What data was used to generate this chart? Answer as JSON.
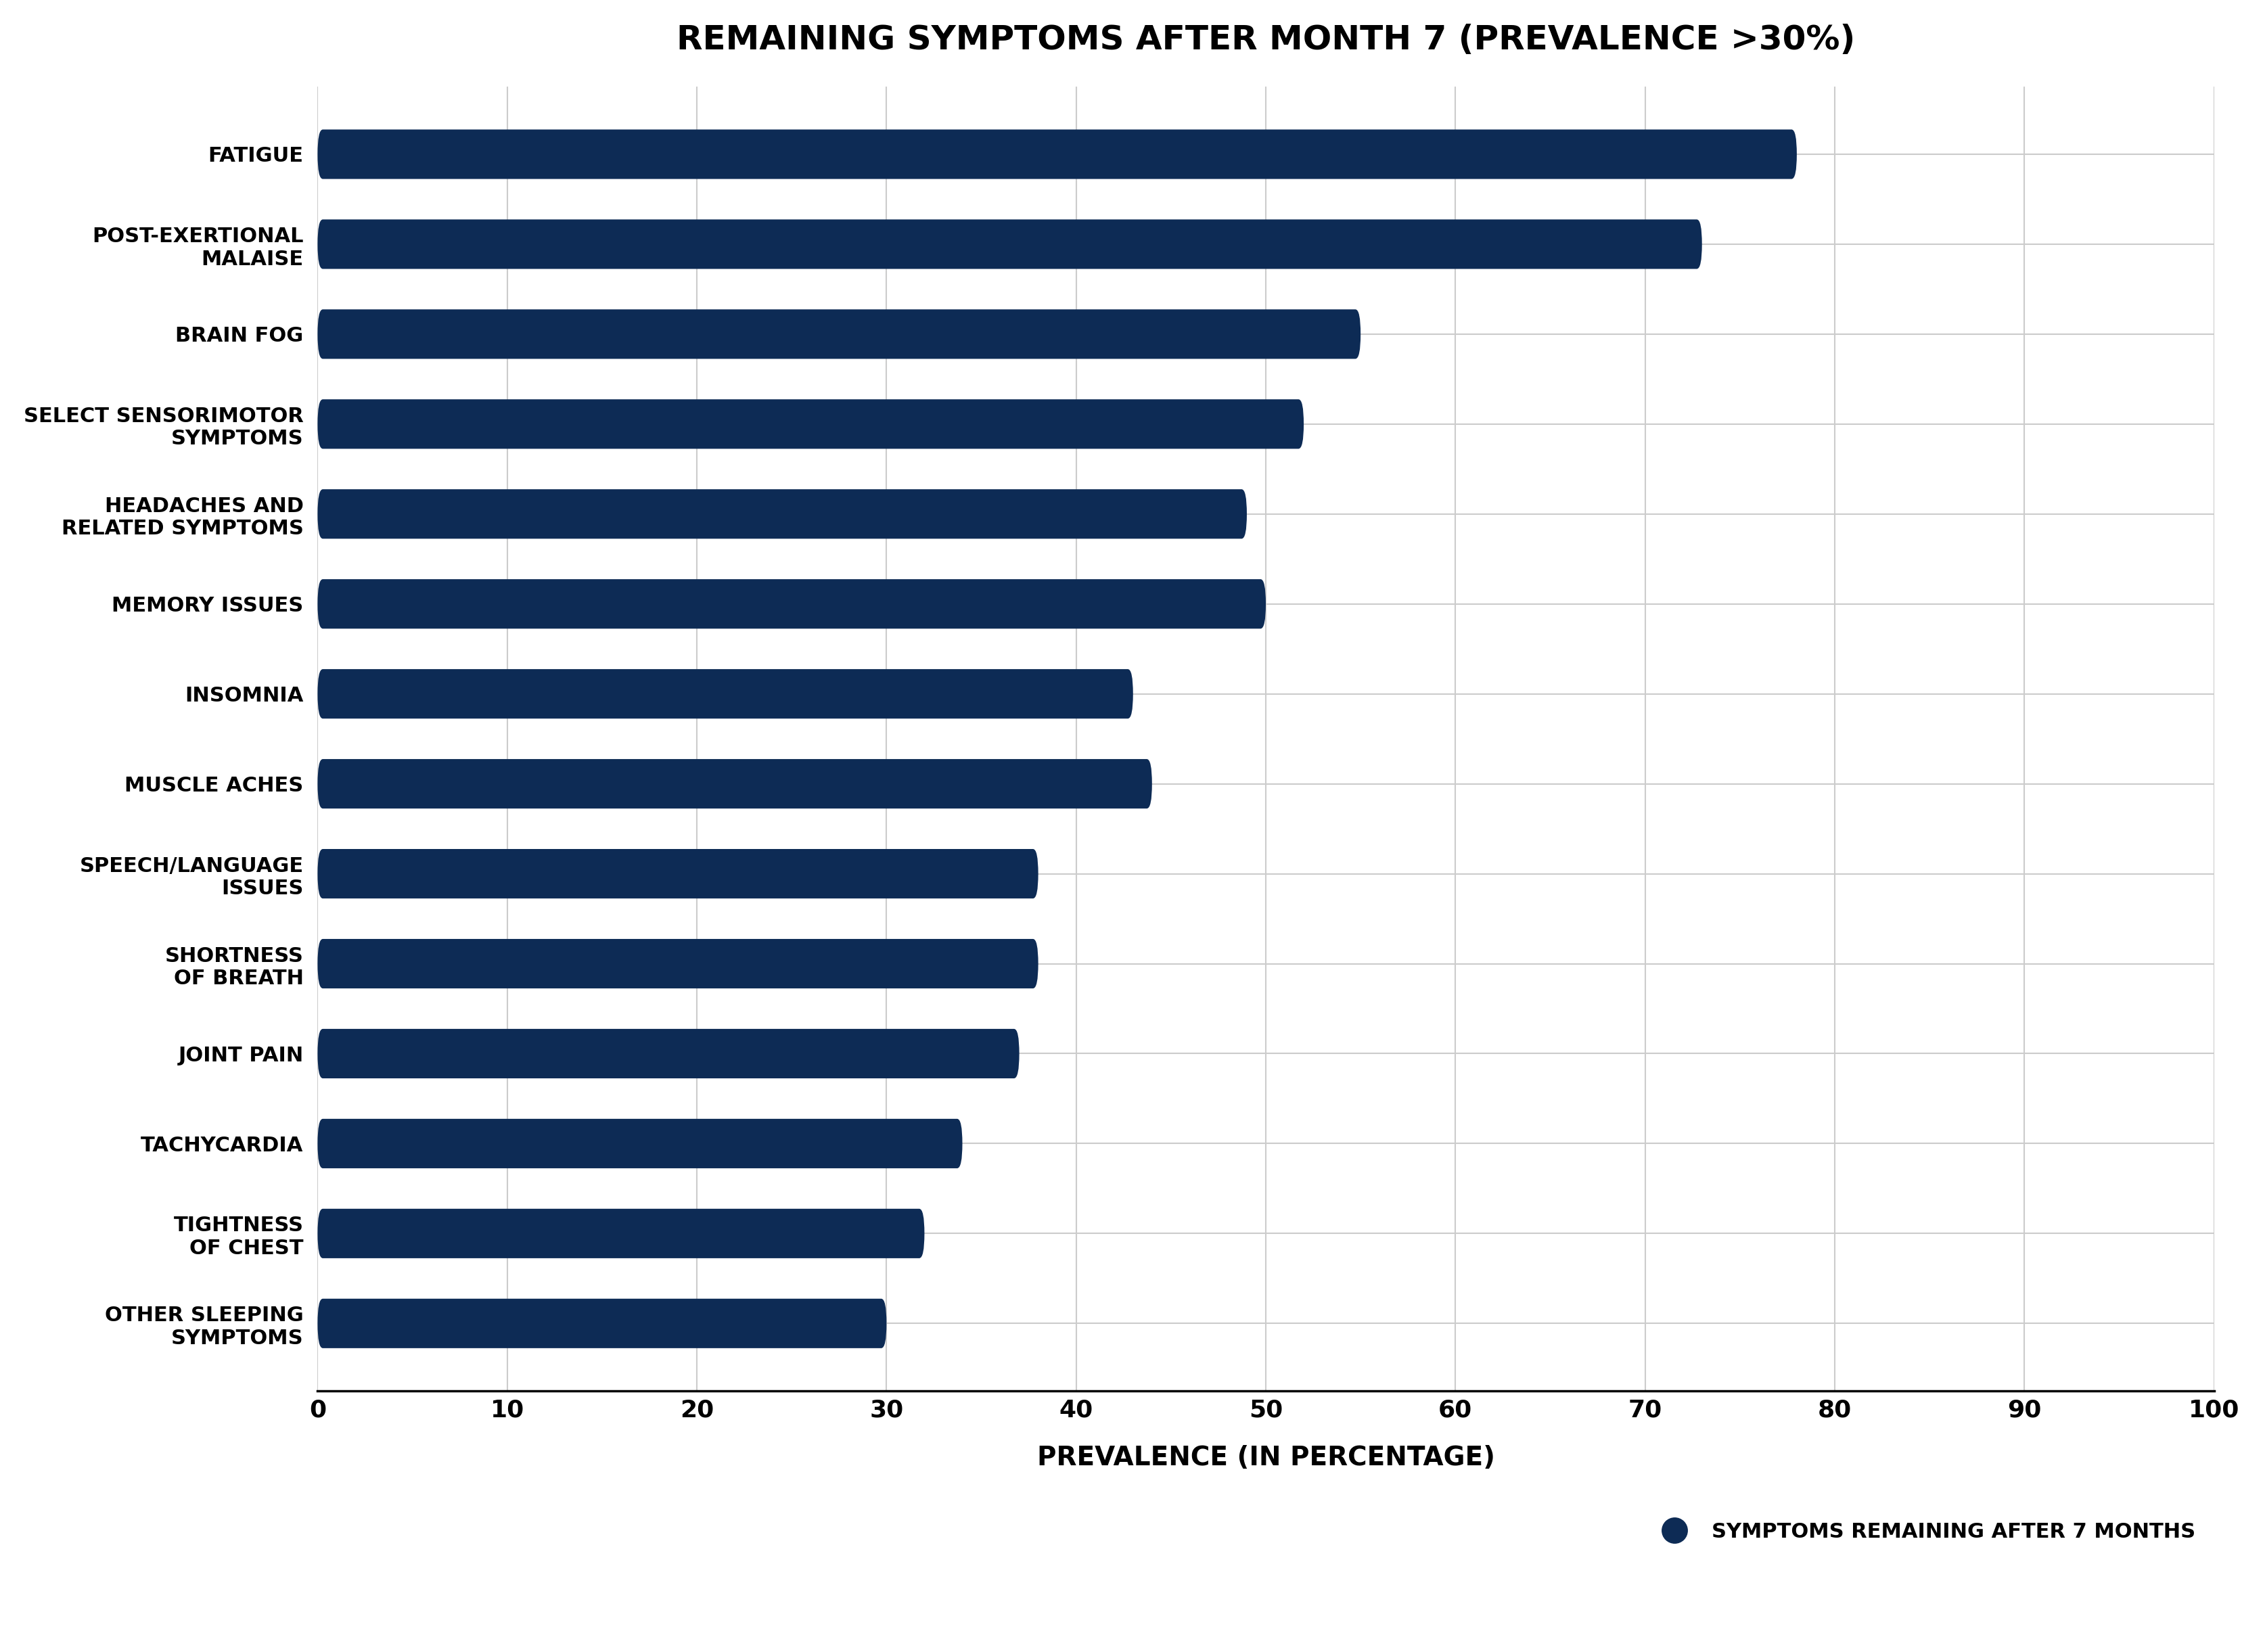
{
  "title": "REMAINING SYMPTOMS AFTER MONTH 7 (PREVALENCE >30%)",
  "categories": [
    "OTHER SLEEPING\nSYMPTOMS",
    "TIGHTNESS\nOF CHEST",
    "TACHYCARDIA",
    "JOINT PAIN",
    "SHORTNESS\nOF BREATH",
    "SPEECH/LANGUAGE\nISSUES",
    "MUSCLE ACHES",
    "INSOMNIA",
    "MEMORY ISSUES",
    "HEADACHES AND\nRELATED SYMPTOMS",
    "SELECT SENSORIMOTOR\nSYMPTOMS",
    "BRAIN FOG",
    "POST-EXERTIONAL\nMALAISE",
    "FATIGUE"
  ],
  "values": [
    30,
    32,
    34,
    37,
    38,
    38,
    44,
    43,
    50,
    49,
    52,
    55,
    73,
    78
  ],
  "bar_color": "#0d2b55",
  "background_color": "#ffffff",
  "grid_color": "#cccccc",
  "xlabel": "PREVALENCE (IN PERCENTAGE)",
  "legend_label": "SYMPTOMS REMAINING AFTER 7 MONTHS",
  "xlim": [
    0,
    100
  ],
  "xticks": [
    0,
    10,
    20,
    30,
    40,
    50,
    60,
    70,
    80,
    90,
    100
  ],
  "bar_height": 0.55,
  "title_fontsize": 36,
  "label_fontsize": 22,
  "tick_fontsize": 26,
  "xlabel_fontsize": 28,
  "legend_fontsize": 22
}
